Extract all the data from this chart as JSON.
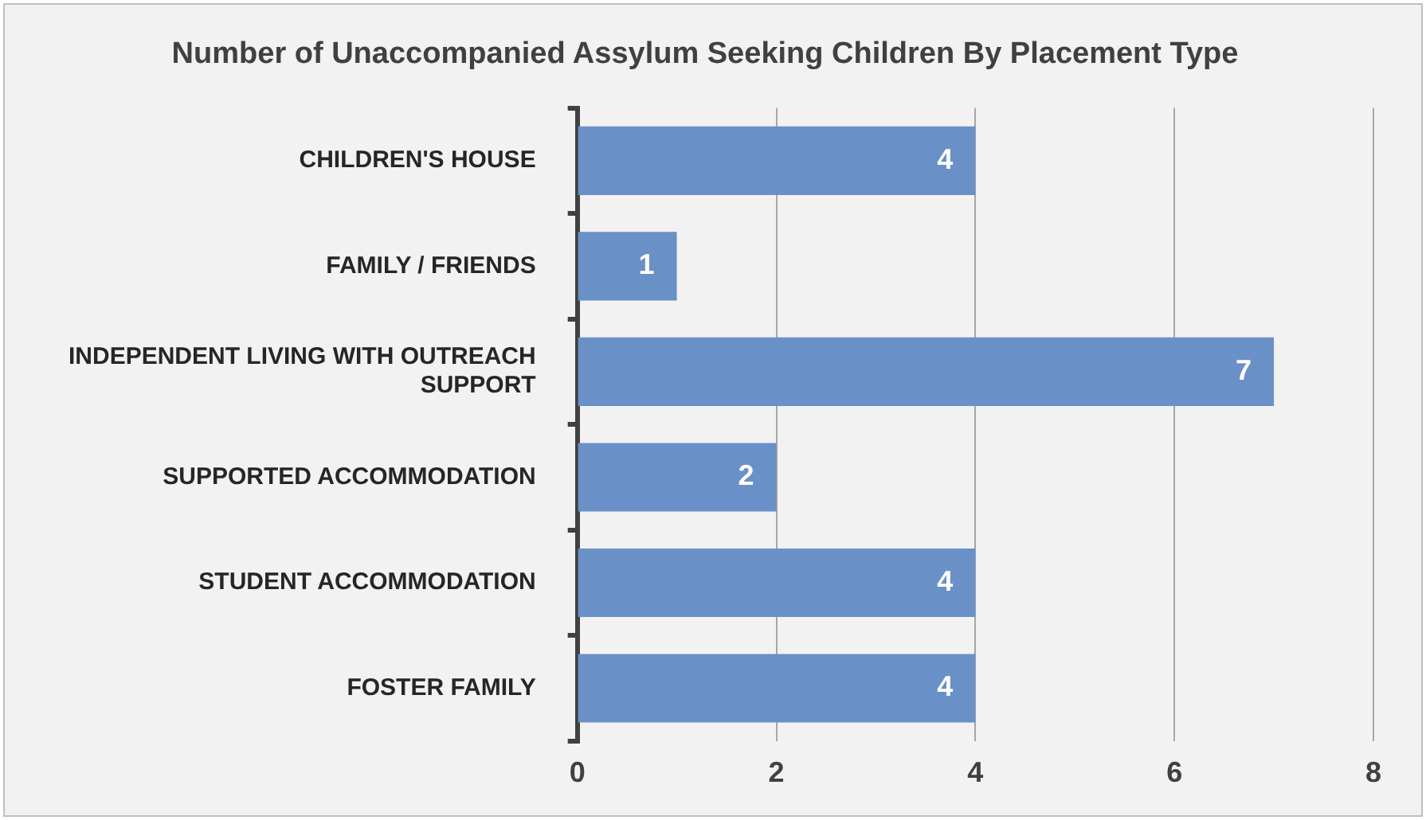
{
  "chart_data": {
    "type": "bar",
    "orientation": "horizontal",
    "title": "Number of Unaccompanied Assylum Seeking Children By Placement Type",
    "categories": [
      "CHILDREN'S HOUSE",
      "FAMILY / FRIENDS",
      "INDEPENDENT LIVING WITH OUTREACH SUPPORT",
      "SUPPORTED ACCOMMODATION",
      "STUDENT ACCOMMODATION",
      "FOSTER FAMILY"
    ],
    "values": [
      4,
      1,
      7,
      2,
      4,
      4
    ],
    "color": "#6a90c8",
    "xlim": [
      0,
      8
    ],
    "xticks": [
      0,
      2,
      4,
      6,
      8
    ],
    "grid": "x",
    "data_labels": true
  }
}
